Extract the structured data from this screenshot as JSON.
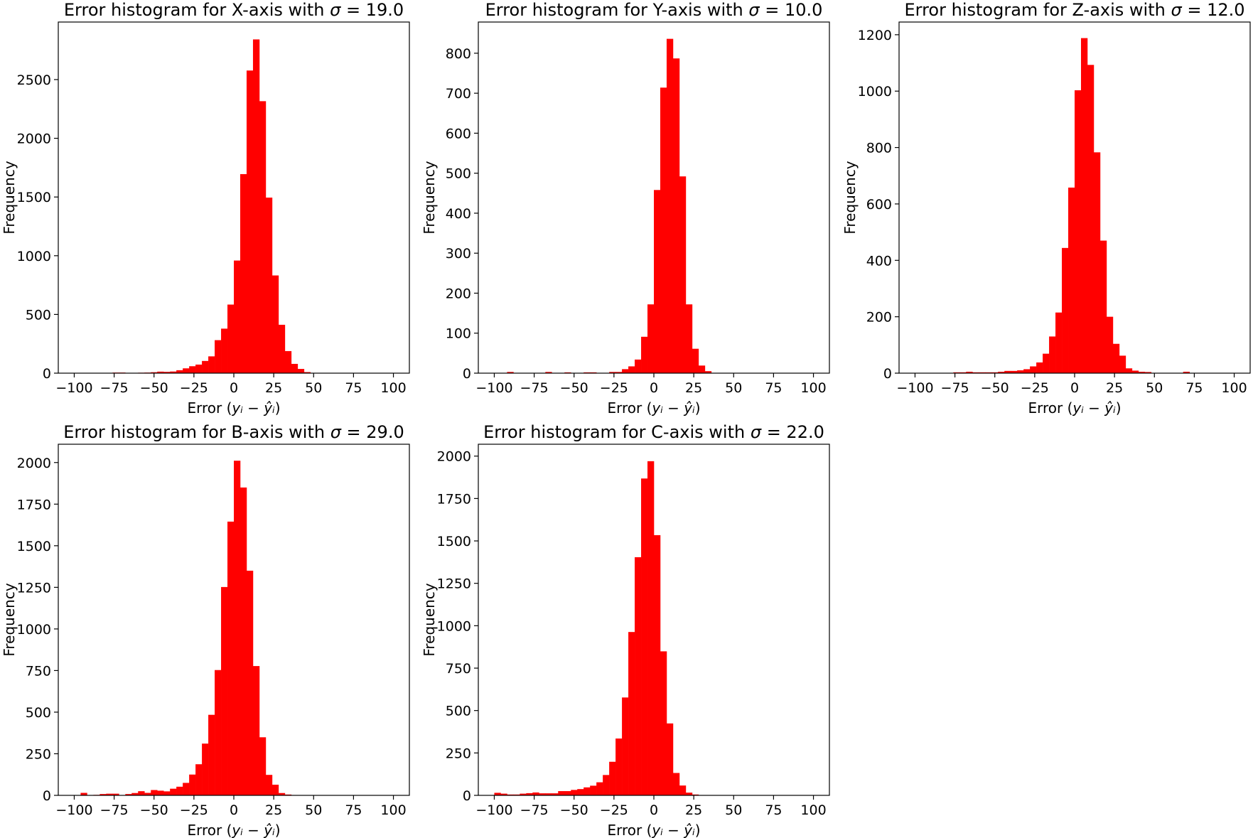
{
  "colors": {
    "bar": "#ff0000",
    "axis": "#000000",
    "background": "#ffffff"
  },
  "chart_data": [
    {
      "type": "bar",
      "title_prefix": "Error histogram for X-axis with ",
      "title_symbol": "σ",
      "title_suffix": " = 19.0",
      "xlabel_prefix": "Error (",
      "xlabel_math": "yᵢ − ŷᵢ",
      "xlabel_suffix": ")",
      "ylabel": "Frequency",
      "xlim": [
        -110,
        110
      ],
      "ylim": [
        0,
        2990
      ],
      "xticks": [
        -100,
        -75,
        -50,
        -25,
        0,
        25,
        50,
        75,
        100
      ],
      "yticks": [
        0,
        500,
        1000,
        1500,
        2000,
        2500
      ],
      "bin_start": -100,
      "bin_width": 4,
      "values": [
        0,
        0,
        0,
        0,
        0,
        0,
        5,
        5,
        0,
        0,
        4,
        5,
        8,
        13,
        11,
        14,
        25,
        41,
        59,
        73,
        104,
        143,
        281,
        379,
        584,
        959,
        1695,
        2577,
        2842,
        2316,
        1495,
        832,
        412,
        188,
        79,
        36,
        9,
        3,
        0,
        0,
        0,
        0,
        0,
        0,
        0,
        0,
        0,
        0,
        0,
        0
      ]
    },
    {
      "type": "bar",
      "title_prefix": "Error histogram for Y-axis with ",
      "title_symbol": "σ",
      "title_suffix": " = 10.0",
      "xlabel_prefix": "Error (",
      "xlabel_math": "yᵢ − ŷᵢ",
      "xlabel_suffix": ")",
      "ylabel": "Frequency",
      "xlim": [
        -110,
        110
      ],
      "ylim": [
        0,
        878
      ],
      "xticks": [
        -100,
        -75,
        -50,
        -25,
        0,
        25,
        50,
        75,
        100
      ],
      "yticks": [
        0,
        100,
        200,
        300,
        400,
        500,
        600,
        700,
        800
      ],
      "bin_start": -100,
      "bin_width": 4,
      "values": [
        0,
        0,
        3,
        0,
        0,
        0,
        0,
        0,
        3,
        0,
        0,
        2,
        0,
        0,
        2,
        2,
        0,
        0,
        3,
        3,
        10,
        17,
        34,
        91,
        172,
        458,
        714,
        836,
        787,
        492,
        172,
        61,
        19,
        5,
        0,
        0,
        0,
        0,
        0,
        0,
        0,
        0,
        0,
        0,
        0,
        0,
        0,
        0,
        0,
        0
      ]
    },
    {
      "type": "bar",
      "title_prefix": "Error histogram for Z-axis with ",
      "title_symbol": "σ",
      "title_suffix": " = 12.0",
      "xlabel_prefix": "Error (",
      "xlabel_math": "yᵢ − ŷᵢ",
      "xlabel_suffix": ")",
      "ylabel": "Frequency",
      "xlim": [
        -110,
        110
      ],
      "ylim": [
        0,
        1245
      ],
      "xticks": [
        -100,
        -75,
        -50,
        -25,
        0,
        25,
        50,
        75,
        100
      ],
      "yticks": [
        0,
        200,
        400,
        600,
        800,
        1000,
        1200
      ],
      "bin_start": -100,
      "bin_width": 4,
      "values": [
        0,
        0,
        0,
        0,
        0,
        0,
        3,
        3,
        5,
        3,
        3,
        3,
        3,
        5,
        8,
        8,
        10,
        14,
        24,
        38,
        69,
        130,
        215,
        444,
        658,
        1003,
        1188,
        1093,
        783,
        470,
        200,
        104,
        62,
        17,
        9,
        5,
        4,
        0,
        0,
        0,
        0,
        0,
        5,
        0,
        0,
        0,
        0,
        0,
        0,
        0
      ]
    },
    {
      "type": "bar",
      "title_prefix": "Error histogram for B-axis with ",
      "title_symbol": "σ",
      "title_suffix": " = 29.0",
      "xlabel_prefix": "Error (",
      "xlabel_math": "yᵢ − ŷᵢ",
      "xlabel_suffix": ")",
      "ylabel": "Frequency",
      "xlim": [
        -110,
        110
      ],
      "ylim": [
        0,
        2110
      ],
      "xticks": [
        -100,
        -75,
        -50,
        -25,
        0,
        25,
        50,
        75,
        100
      ],
      "yticks": [
        0,
        250,
        500,
        750,
        1000,
        1250,
        1500,
        1750,
        2000
      ],
      "bin_start": -100,
      "bin_width": 4,
      "values": [
        0,
        15,
        0,
        3,
        8,
        10,
        10,
        0,
        8,
        14,
        25,
        15,
        32,
        28,
        24,
        40,
        52,
        75,
        125,
        187,
        311,
        484,
        753,
        1252,
        1645,
        2011,
        1850,
        1350,
        777,
        349,
        123,
        64,
        14,
        5,
        0,
        0,
        0,
        0,
        0,
        0,
        0,
        0,
        0,
        0,
        0,
        0,
        0,
        0,
        0,
        0
      ]
    },
    {
      "type": "bar",
      "title_prefix": "Error histogram for C-axis with ",
      "title_symbol": "σ",
      "title_suffix": " = 22.0",
      "xlabel_prefix": "Error (",
      "xlabel_math": "yᵢ − ŷᵢ",
      "xlabel_suffix": ")",
      "ylabel": "Frequency",
      "xlim": [
        -110,
        110
      ],
      "ylim": [
        0,
        2070
      ],
      "xticks": [
        -100,
        -75,
        -50,
        -25,
        0,
        25,
        50,
        75,
        100
      ],
      "yticks": [
        0,
        250,
        500,
        750,
        1000,
        1250,
        1500,
        1750,
        2000
      ],
      "bin_start": -100,
      "bin_width": 4,
      "values": [
        15,
        10,
        5,
        5,
        10,
        13,
        17,
        12,
        12,
        12,
        25,
        25,
        32,
        37,
        47,
        57,
        77,
        120,
        198,
        335,
        577,
        963,
        1404,
        1868,
        1970,
        1534,
        849,
        424,
        132,
        58,
        16,
        5,
        0,
        0,
        0,
        0,
        0,
        0,
        0,
        0,
        0,
        0,
        0,
        0,
        0,
        0,
        0,
        0,
        0,
        0
      ]
    }
  ]
}
